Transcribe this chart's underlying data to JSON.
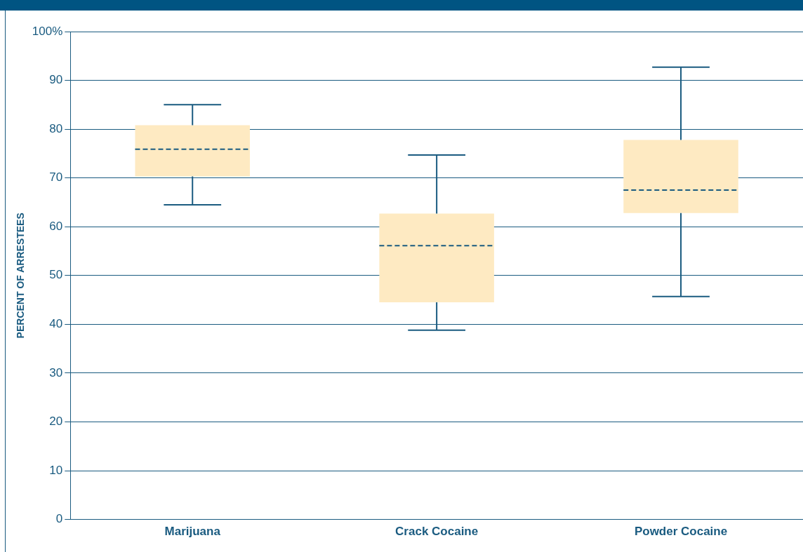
{
  "chart_data": {
    "type": "box",
    "ylabel": "PERCENT OF ARRESTEES",
    "categories": [
      "Marijuana",
      "Crack Cocaine",
      "Powder Cocaine"
    ],
    "color": "#feeac2",
    "boxes": [
      {
        "low": 64.5,
        "q1": 70.3,
        "median": 75.9,
        "q3": 80.8,
        "high": 85
      },
      {
        "low": 38.8,
        "q1": 44.5,
        "median": 56.1,
        "q3": 62.7,
        "high": 74.7
      },
      {
        "low": 45.7,
        "q1": 62.8,
        "median": 67.5,
        "q3": 77.8,
        "high": 92.7
      }
    ],
    "ylim": [
      0,
      100
    ],
    "yticks": [
      0,
      10,
      20,
      30,
      40,
      50,
      60,
      70,
      80,
      90,
      {
        "value": 100,
        "label": "100%"
      }
    ],
    "grid": "y",
    "legend": false
  }
}
